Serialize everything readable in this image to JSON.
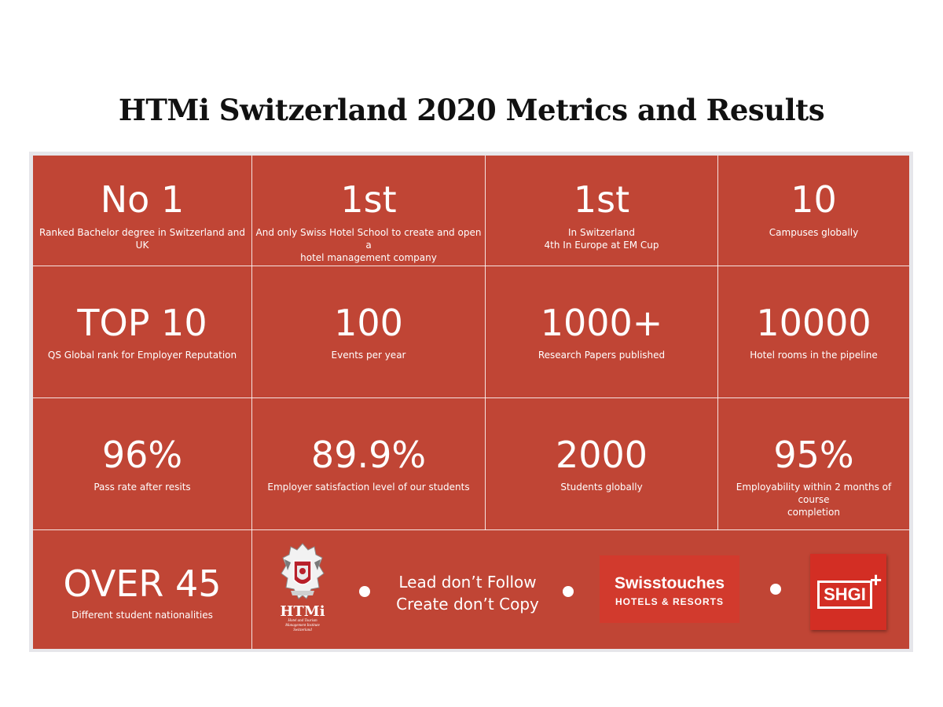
{
  "title": "HTMi Switzerland 2020 Metrics and Results",
  "metrics": [
    {
      "value": "No 1",
      "label": "Ranked Bachelor degree in Switzerland and UK"
    },
    {
      "value": "1st",
      "label": "And only Swiss Hotel School to create and open a\nhotel management company"
    },
    {
      "value": "1st",
      "label": "In Switzerland\n4th In Europe at EM Cup"
    },
    {
      "value": "10",
      "label": "Campuses globally"
    },
    {
      "value": "TOP 10",
      "label": "QS Global rank for Employer Reputation"
    },
    {
      "value": "100",
      "label": "Events per year"
    },
    {
      "value": "1000+",
      "label": "Research Papers published"
    },
    {
      "value": "10000",
      "label": "Hotel rooms in the pipeline"
    },
    {
      "value": "96%",
      "label": "Pass rate after resits"
    },
    {
      "value": "89.9%",
      "label": "Employer satisfaction level of our students"
    },
    {
      "value": "2000",
      "label": "Students globally"
    },
    {
      "value": "95%",
      "label": "Employability within 2 months of course\ncompletion"
    },
    {
      "value": "OVER 45",
      "label": "Different student nationalities"
    }
  ],
  "motto": {
    "line1": "Lead don’t Follow",
    "line2": "Create don’t Copy"
  },
  "logos": {
    "htmi": {
      "word": "HTMi",
      "sub": "Hotel and Tourism\nManagement Institute\nSwitzerland"
    },
    "swisstouches": {
      "name": "Swisstouches",
      "sub": "HOTELS & RESORTS"
    },
    "shgi": {
      "text": "SHGI",
      "plus": "+"
    }
  },
  "colors": {
    "panel": "#c04535",
    "logo_red": "#d32e24"
  }
}
